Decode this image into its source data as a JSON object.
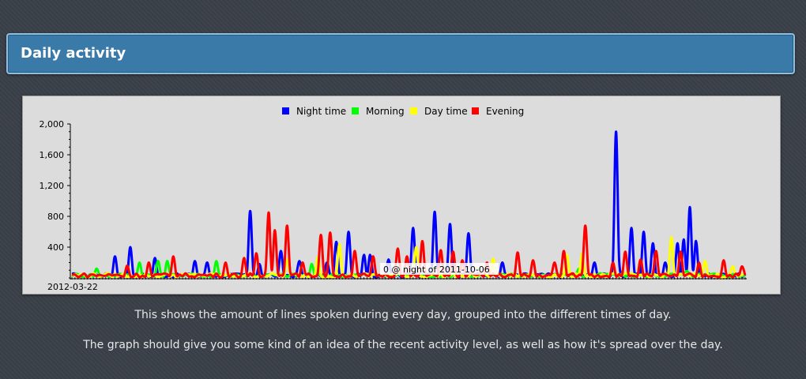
{
  "page": {
    "title": "Daily activity",
    "description_1": "This shows the amount of lines spoken during every day, grouped into the different times of day.",
    "description_2": "The graph should give you some kind of an idea of the recent activity level, as well as how it's spread over the day."
  },
  "chart_data": {
    "type": "line",
    "title": "",
    "xlabel": "",
    "ylabel": "",
    "ylim": [
      0,
      2000
    ],
    "y_ticks": [
      2000,
      1600,
      1200,
      800,
      400
    ],
    "y_tick_labels": [
      "2,000",
      "1,600",
      "1,200",
      "800",
      "400"
    ],
    "x_start_label": "2012-03-22",
    "legend_position": "top-center",
    "tooltip": "0 @ night of 2011-10-06",
    "grid": false,
    "num_days": 220,
    "series": [
      {
        "name": "Night time",
        "color": "#0000ff",
        "peaks": [
          [
            14,
            280
          ],
          [
            19,
            400
          ],
          [
            27,
            260
          ],
          [
            40,
            220
          ],
          [
            44,
            200
          ],
          [
            58,
            870
          ],
          [
            61,
            180
          ],
          [
            68,
            350
          ],
          [
            74,
            220
          ],
          [
            83,
            200
          ],
          [
            86,
            470
          ],
          [
            90,
            600
          ],
          [
            95,
            300
          ],
          [
            97,
            300
          ],
          [
            103,
            240
          ],
          [
            111,
            650
          ],
          [
            118,
            860
          ],
          [
            123,
            700
          ],
          [
            129,
            580
          ],
          [
            140,
            200
          ],
          [
            170,
            200
          ],
          [
            177,
            1900
          ],
          [
            182,
            650
          ],
          [
            186,
            600
          ],
          [
            189,
            450
          ],
          [
            193,
            200
          ],
          [
            197,
            450
          ],
          [
            199,
            500
          ],
          [
            201,
            920
          ],
          [
            203,
            480
          ]
        ]
      },
      {
        "name": "Morning",
        "color": "#00ff00",
        "peaks": [
          [
            8,
            120
          ],
          [
            22,
            200
          ],
          [
            28,
            220
          ],
          [
            31,
            220
          ],
          [
            47,
            220
          ],
          [
            78,
            180
          ],
          [
            165,
            120
          ],
          [
            200,
            90
          ]
        ]
      },
      {
        "name": "Day time",
        "color": "#ffff00",
        "peaks": [
          [
            70,
            240
          ],
          [
            80,
            270
          ],
          [
            87,
            440
          ],
          [
            112,
            400
          ],
          [
            137,
            250
          ],
          [
            161,
            300
          ],
          [
            166,
            320
          ],
          [
            195,
            530
          ],
          [
            206,
            220
          ],
          [
            215,
            150
          ]
        ]
      },
      {
        "name": "Evening",
        "color": "#ff0000",
        "peaks": [
          [
            18,
            160
          ],
          [
            25,
            200
          ],
          [
            33,
            280
          ],
          [
            50,
            200
          ],
          [
            56,
            260
          ],
          [
            60,
            320
          ],
          [
            64,
            850
          ],
          [
            66,
            620
          ],
          [
            70,
            680
          ],
          [
            75,
            200
          ],
          [
            81,
            560
          ],
          [
            84,
            590
          ],
          [
            92,
            350
          ],
          [
            98,
            280
          ],
          [
            106,
            380
          ],
          [
            109,
            280
          ],
          [
            114,
            480
          ],
          [
            120,
            360
          ],
          [
            124,
            340
          ],
          [
            127,
            230
          ],
          [
            135,
            200
          ],
          [
            145,
            330
          ],
          [
            150,
            230
          ],
          [
            157,
            200
          ],
          [
            160,
            350
          ],
          [
            167,
            680
          ],
          [
            176,
            200
          ],
          [
            180,
            340
          ],
          [
            185,
            240
          ],
          [
            190,
            350
          ],
          [
            198,
            340
          ],
          [
            204,
            200
          ],
          [
            212,
            230
          ],
          [
            218,
            150
          ]
        ]
      }
    ]
  }
}
